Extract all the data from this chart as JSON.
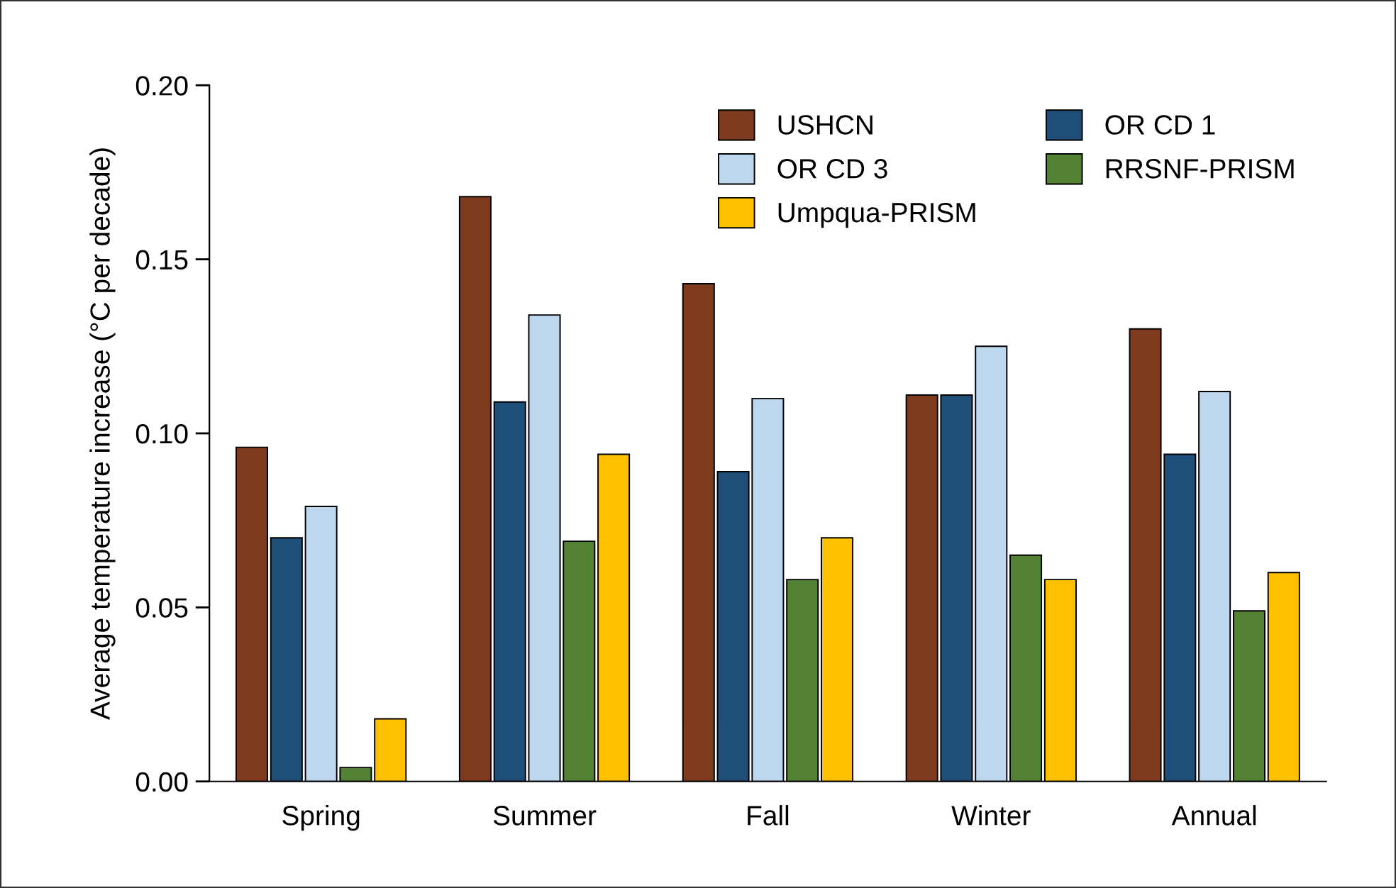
{
  "chart_data": {
    "type": "bar",
    "ylabel": "Average temperature increase (°C per decade)",
    "categories": [
      "Spring",
      "Summer",
      "Fall",
      "Winter",
      "Annual"
    ],
    "series": [
      {
        "name": "USHCN",
        "color": "#7f3b1e",
        "values": [
          0.096,
          0.168,
          0.143,
          0.111,
          0.13
        ]
      },
      {
        "name": "OR CD 1",
        "color": "#1f4e79",
        "values": [
          0.07,
          0.109,
          0.089,
          0.111,
          0.094
        ]
      },
      {
        "name": "OR CD 3",
        "color": "#bdd7ee",
        "values": [
          0.079,
          0.134,
          0.11,
          0.125,
          0.112
        ]
      },
      {
        "name": "RRSNF-PRISM",
        "color": "#548235",
        "values": [
          0.004,
          0.069,
          0.058,
          0.065,
          0.049
        ]
      },
      {
        "name": "Umpqua-PRISM",
        "color": "#ffc000",
        "values": [
          0.018,
          0.094,
          0.07,
          0.058,
          0.06
        ]
      }
    ],
    "ylim": [
      0,
      0.2
    ],
    "yticks": [
      {
        "value": 0,
        "label": "0.00"
      },
      {
        "value": 0.05,
        "label": "0.05"
      },
      {
        "value": 0.1,
        "label": "0.10"
      },
      {
        "value": 0.15,
        "label": "0.15"
      },
      {
        "value": 0.2,
        "label": "0.20"
      }
    ],
    "grid": false,
    "legend": "top right"
  }
}
